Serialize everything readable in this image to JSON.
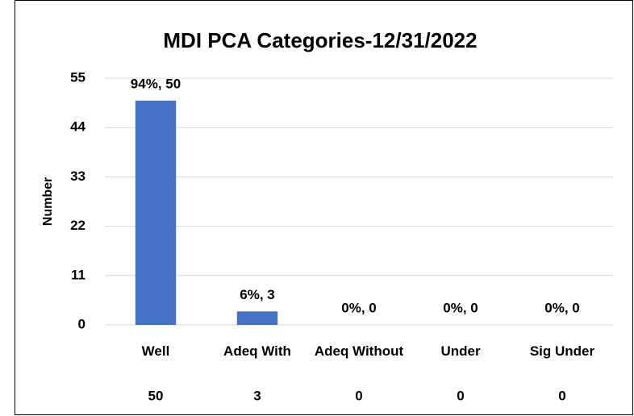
{
  "chart_data": {
    "type": "bar",
    "title": "MDI PCA Categories-12/31/2022",
    "y_label": "Number",
    "categories": [
      "Well",
      "Adeq With",
      "Adeq Without",
      "Under",
      "Sig Under"
    ],
    "values": [
      50,
      3,
      0,
      0,
      0
    ],
    "value_labels": [
      "94%, 50",
      "6%, 3",
      "0%, 0",
      "0%, 0",
      "0%, 0"
    ],
    "color": "#4472c4",
    "ylim": [
      0,
      55
    ],
    "yticks": [
      0,
      11,
      22,
      33,
      44,
      55
    ],
    "grid": true
  }
}
